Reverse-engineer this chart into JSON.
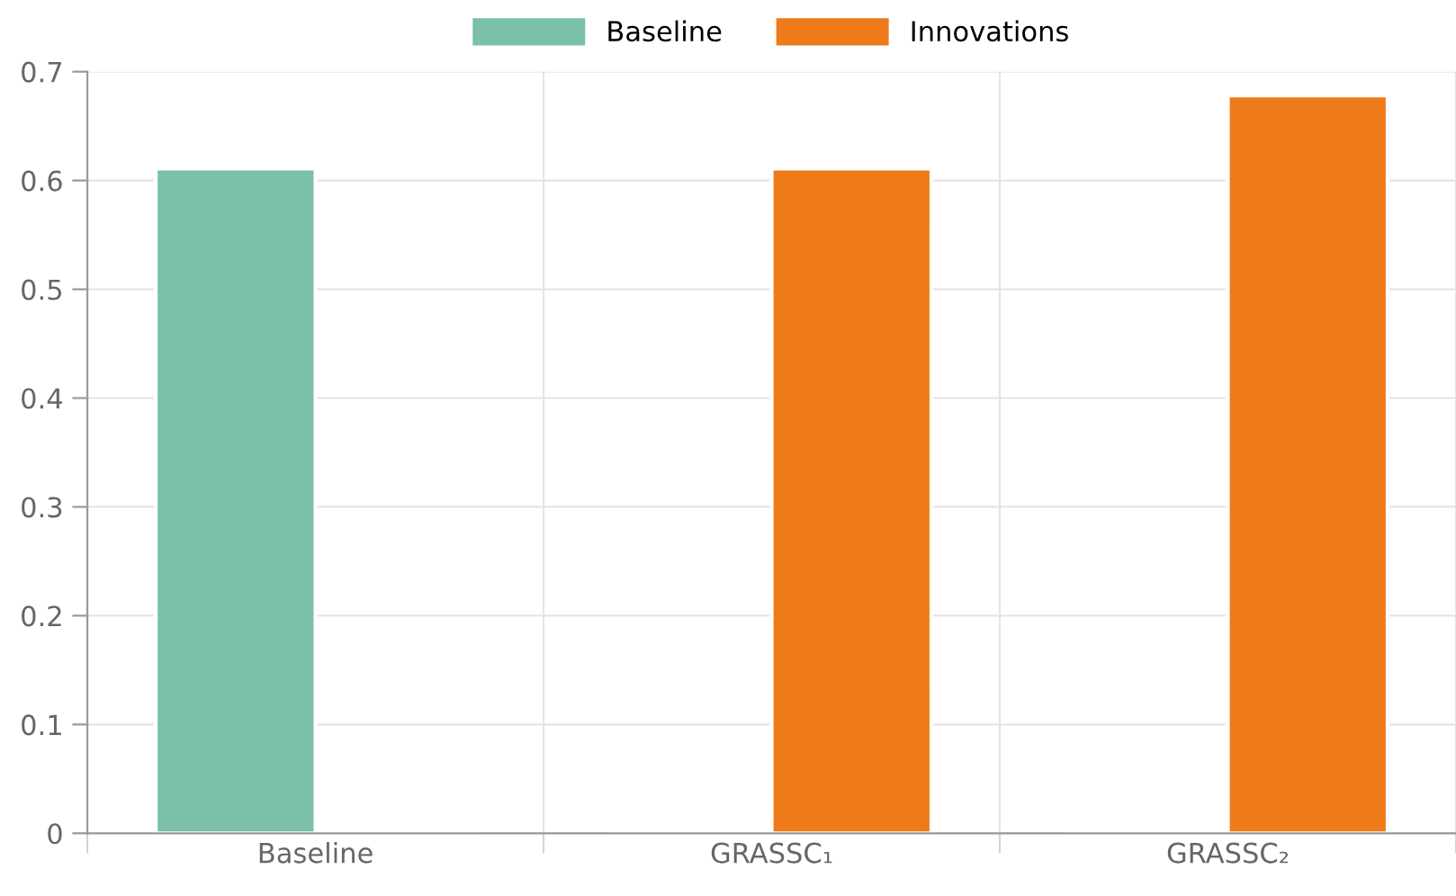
{
  "chart_data": {
    "type": "bar",
    "categories": [
      "Baseline",
      "GRASSC₁",
      "GRASSC₂"
    ],
    "series": [
      {
        "name": "Baseline",
        "color": "#7bc0a9",
        "values": [
          0.611,
          null,
          null
        ]
      },
      {
        "name": "Innovations",
        "color": "#ee7a1a",
        "values": [
          null,
          0.611,
          0.678
        ]
      }
    ],
    "ylim": [
      0,
      0.7
    ],
    "yticks": [
      0,
      0.1,
      0.2,
      0.3,
      0.4,
      0.5,
      0.6,
      0.7
    ],
    "grid": true,
    "legend": "top"
  }
}
